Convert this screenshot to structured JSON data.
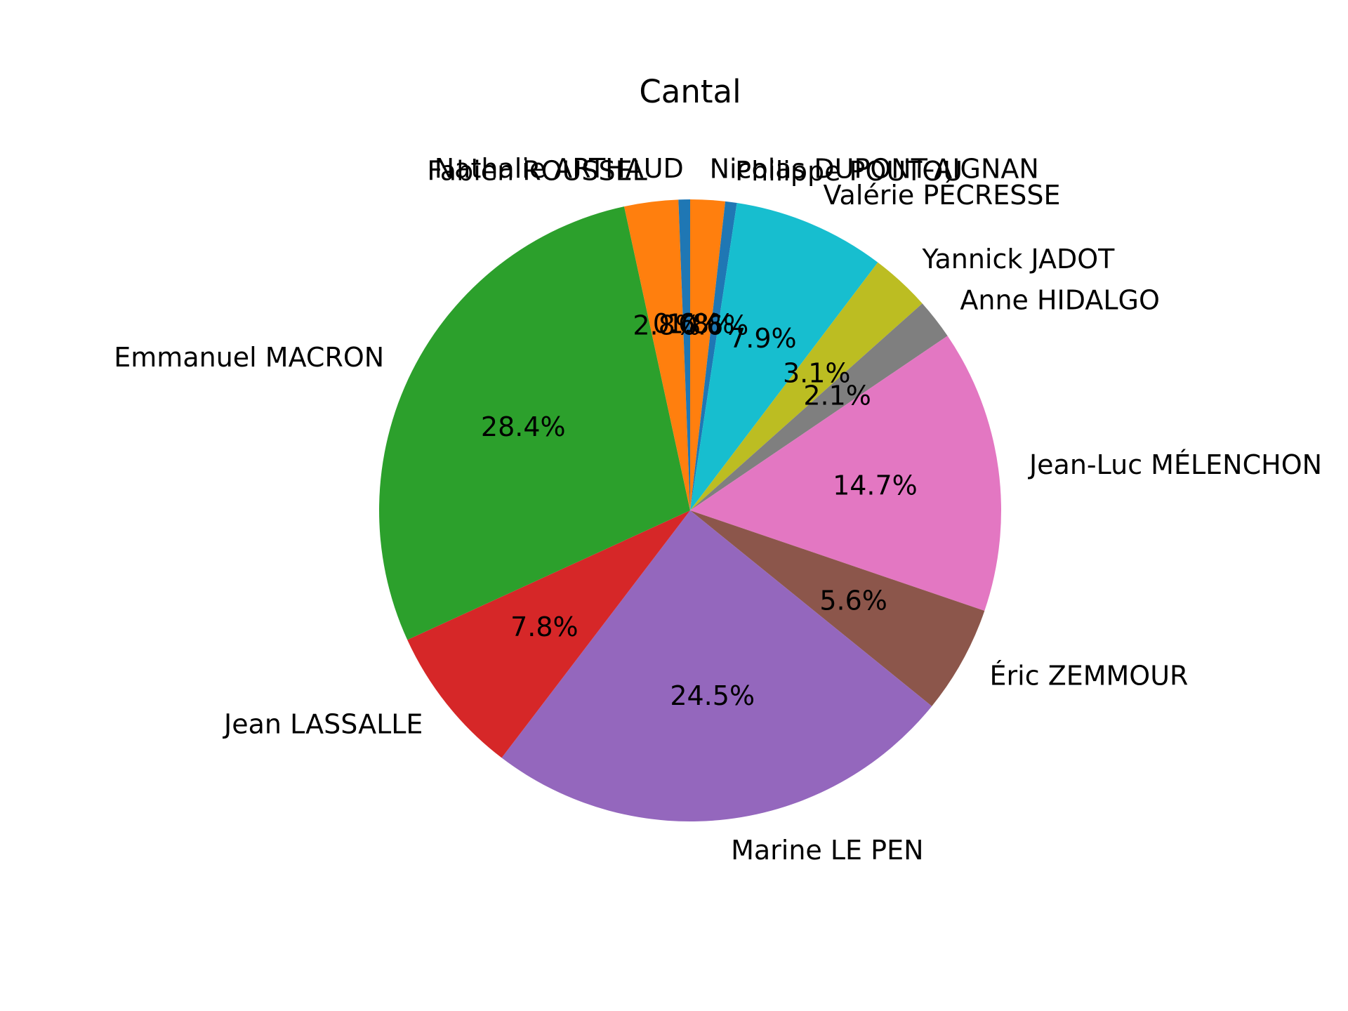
{
  "chart_data": {
    "type": "pie",
    "title": "Cantal",
    "start_angle_deg": 90,
    "counterclock": false,
    "slices": [
      {
        "label": "Nicolas DUPONT-AIGNAN",
        "value": 1.8,
        "pct_label": "1.8%",
        "color": "#ff7f0e"
      },
      {
        "label": "Philippe POUTOU",
        "value": 0.6,
        "pct_label": "0.6%",
        "color": "#1f77b4"
      },
      {
        "label": "Valérie PÉCRESSE",
        "value": 7.9,
        "pct_label": "7.9%",
        "color": "#17becf"
      },
      {
        "label": "Yannick JADOT",
        "value": 3.1,
        "pct_label": "3.1%",
        "color": "#bcbd22"
      },
      {
        "label": "Anne HIDALGO",
        "value": 2.1,
        "pct_label": "2.1%",
        "color": "#7f7f7f"
      },
      {
        "label": "Jean-Luc MÉLENCHON",
        "value": 14.7,
        "pct_label": "14.7%",
        "color": "#e377c2"
      },
      {
        "label": "Éric ZEMMOUR",
        "value": 5.6,
        "pct_label": "5.6%",
        "color": "#8c564b"
      },
      {
        "label": "Marine LE PEN",
        "value": 24.5,
        "pct_label": "24.5%",
        "color": "#9467bd"
      },
      {
        "label": "Jean LASSALLE",
        "value": 7.8,
        "pct_label": "7.8%",
        "color": "#d62728"
      },
      {
        "label": "Emmanuel MACRON",
        "value": 28.4,
        "pct_label": "28.4%",
        "color": "#2ca02c"
      },
      {
        "label": "Fabien ROUSSEL",
        "value": 2.8,
        "pct_label": "2.8%",
        "color": "#ff7f0e"
      },
      {
        "label": "Nathalie ARTHAUD",
        "value": 0.6,
        "pct_label": "0.6%",
        "color": "#1f77b4"
      }
    ]
  }
}
